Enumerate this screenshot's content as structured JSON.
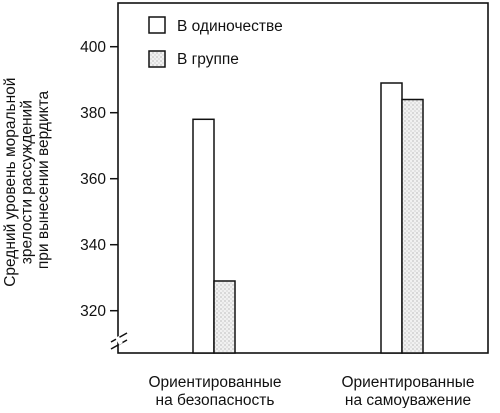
{
  "chart_data": {
    "type": "bar",
    "title": "",
    "ylabel_lines": [
      "Средний уровень моральной",
      "зрелости рассуждений",
      "при вынесении вердикта"
    ],
    "xlabel": "",
    "categories": [
      [
        "Ориентированные",
        "на безопасность"
      ],
      [
        "Ориентированные",
        "на самоуважение"
      ]
    ],
    "series": [
      {
        "name": "В одиночестве",
        "fill": "#ffffff",
        "values": [
          378,
          389
        ]
      },
      {
        "name": "В группе",
        "fill": "#ececec",
        "values": [
          329,
          384
        ]
      }
    ],
    "ylim": [
      310,
      415
    ],
    "yticks": [
      320,
      340,
      360,
      380,
      400
    ],
    "axis_break": true,
    "grid": false,
    "legend_position": "top-left"
  }
}
